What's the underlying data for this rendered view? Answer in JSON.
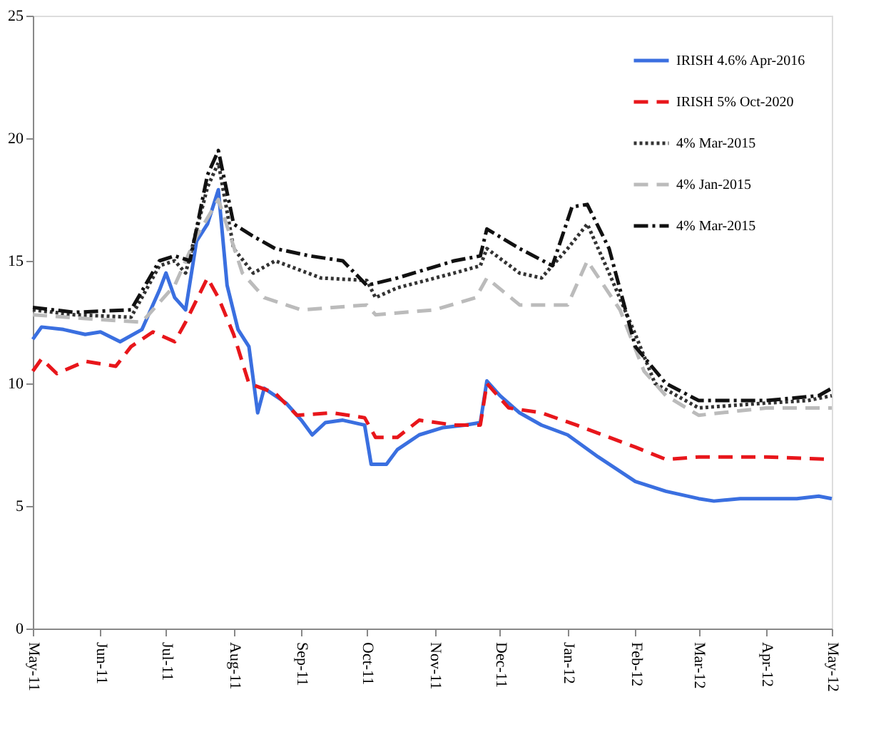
{
  "chart_data": {
    "type": "line",
    "legend": "top right",
    "grid": false,
    "xlim": [
      "2011-05-01",
      "2012-05-01"
    ],
    "xticks": [
      {
        "value": "2011-05-01",
        "label": "May-11"
      },
      {
        "value": "2011-06-01",
        "label": "Jun-11"
      },
      {
        "value": "2011-07-01",
        "label": "Jul-11"
      },
      {
        "value": "2011-08-01",
        "label": "Aug-11"
      },
      {
        "value": "2011-09-01",
        "label": "Sep-11"
      },
      {
        "value": "2011-10-01",
        "label": "Oct-11"
      },
      {
        "value": "2011-11-01",
        "label": "Nov-11"
      },
      {
        "value": "2011-12-01",
        "label": "Dec-11"
      },
      {
        "value": "2012-01-01",
        "label": "Jan-12"
      },
      {
        "value": "2012-02-01",
        "label": "Feb-12"
      },
      {
        "value": "2012-03-01",
        "label": "Mar-12"
      },
      {
        "value": "2012-04-01",
        "label": "Apr-12"
      },
      {
        "value": "2012-05-01",
        "label": "May-12"
      }
    ],
    "ylim": [
      0,
      25
    ],
    "yticks": [
      0,
      5,
      10,
      15,
      20,
      25
    ],
    "series": [
      {
        "name": "IRISH 4.6% Apr-2016",
        "color": "#3a6fe0",
        "line_style": "solid",
        "x": [
          "2011-05-01",
          "2011-05-05",
          "2011-05-15",
          "2011-05-25",
          "2011-06-01",
          "2011-06-10",
          "2011-06-20",
          "2011-06-28",
          "2011-07-01",
          "2011-07-05",
          "2011-07-10",
          "2011-07-15",
          "2011-07-20",
          "2011-07-25",
          "2011-07-29",
          "2011-08-03",
          "2011-08-08",
          "2011-08-12",
          "2011-08-15",
          "2011-08-25",
          "2011-09-01",
          "2011-09-06",
          "2011-09-12",
          "2011-09-20",
          "2011-09-30",
          "2011-10-03",
          "2011-10-10",
          "2011-10-15",
          "2011-10-25",
          "2011-11-05",
          "2011-11-15",
          "2011-11-22",
          "2011-11-25",
          "2011-12-01",
          "2011-12-10",
          "2011-12-20",
          "2012-01-01",
          "2012-01-15",
          "2012-02-01",
          "2012-02-15",
          "2012-03-01",
          "2012-03-08",
          "2012-03-20",
          "2012-04-01",
          "2012-04-15",
          "2012-04-25",
          "2012-05-01"
        ],
        "values": [
          11.8,
          12.3,
          12.2,
          12.0,
          12.1,
          11.7,
          12.2,
          13.8,
          14.5,
          13.5,
          13.0,
          15.8,
          16.5,
          17.9,
          14.0,
          12.2,
          11.5,
          8.8,
          9.8,
          9.2,
          8.5,
          7.9,
          8.4,
          8.5,
          8.3,
          6.7,
          6.7,
          7.3,
          7.9,
          8.2,
          8.3,
          8.4,
          10.1,
          9.5,
          8.8,
          8.3,
          7.9,
          7.0,
          6.0,
          5.6,
          5.3,
          5.2,
          5.3,
          5.3,
          5.3,
          5.4,
          5.3
        ]
      },
      {
        "name": "IRISH 5% Oct-2020",
        "color": "#e8161b",
        "line_style": "dashed",
        "x": [
          "2011-05-01",
          "2011-05-05",
          "2011-05-12",
          "2011-05-25",
          "2011-06-08",
          "2011-06-15",
          "2011-06-25",
          "2011-07-05",
          "2011-07-10",
          "2011-07-20",
          "2011-07-25",
          "2011-08-01",
          "2011-08-08",
          "2011-08-20",
          "2011-08-30",
          "2011-09-15",
          "2011-09-30",
          "2011-10-05",
          "2011-10-15",
          "2011-10-25",
          "2011-11-10",
          "2011-11-22",
          "2011-11-25",
          "2011-12-05",
          "2011-12-20",
          "2012-01-05",
          "2012-01-20",
          "2012-02-01",
          "2012-02-15",
          "2012-03-01",
          "2012-04-01",
          "2012-05-01"
        ],
        "values": [
          10.5,
          11.0,
          10.4,
          10.9,
          10.7,
          11.5,
          12.1,
          11.7,
          12.5,
          14.3,
          13.5,
          12.0,
          10.0,
          9.6,
          8.7,
          8.8,
          8.6,
          7.8,
          7.8,
          8.5,
          8.3,
          8.3,
          10.0,
          9.0,
          8.8,
          8.3,
          7.8,
          7.4,
          6.9,
          7.0,
          7.0,
          6.9
        ]
      },
      {
        "name": "4% Mar-2015",
        "color": "#333333",
        "line_style": "dotted",
        "x": [
          "2011-05-01",
          "2011-05-20",
          "2011-06-15",
          "2011-06-28",
          "2011-07-05",
          "2011-07-10",
          "2011-07-20",
          "2011-07-25",
          "2011-08-01",
          "2011-08-10",
          "2011-08-20",
          "2011-09-10",
          "2011-10-01",
          "2011-10-05",
          "2011-10-15",
          "2011-11-10",
          "2011-11-22",
          "2011-11-25",
          "2011-12-10",
          "2011-12-20",
          "2012-01-01",
          "2012-01-10",
          "2012-01-20",
          "2012-02-01",
          "2012-02-10",
          "2012-02-20",
          "2012-03-01",
          "2012-04-01",
          "2012-04-20",
          "2012-05-01"
        ],
        "values": [
          13.0,
          12.8,
          12.7,
          14.8,
          15.0,
          14.5,
          18.0,
          19.0,
          15.5,
          14.5,
          15.0,
          14.3,
          14.2,
          13.5,
          13.9,
          14.5,
          14.8,
          15.5,
          14.5,
          14.3,
          15.5,
          16.5,
          14.5,
          12.0,
          10.0,
          9.5,
          9.0,
          9.2,
          9.3,
          9.5
        ]
      },
      {
        "name": "4% Jan-2015",
        "color": "#bbbbbb",
        "line_style": "dashed",
        "x": [
          "2011-05-01",
          "2011-06-01",
          "2011-06-20",
          "2011-07-05",
          "2011-07-15",
          "2011-07-25",
          "2011-08-05",
          "2011-08-15",
          "2011-09-01",
          "2011-10-01",
          "2011-10-05",
          "2011-11-01",
          "2011-11-20",
          "2011-11-25",
          "2011-12-10",
          "2012-01-01",
          "2012-01-10",
          "2012-01-25",
          "2012-02-05",
          "2012-02-15",
          "2012-03-01",
          "2012-04-01",
          "2012-05-01"
        ],
        "values": [
          12.8,
          12.6,
          12.5,
          14.0,
          16.0,
          17.5,
          14.5,
          13.5,
          13.0,
          13.2,
          12.8,
          13.0,
          13.5,
          14.3,
          13.2,
          13.2,
          15.0,
          13.0,
          10.5,
          9.5,
          8.7,
          9.0,
          9.0
        ]
      },
      {
        "name": "4% Mar-2015",
        "color": "#111111",
        "line_style": "dashdot",
        "x": [
          "2011-05-01",
          "2011-05-20",
          "2011-06-15",
          "2011-06-28",
          "2011-07-05",
          "2011-07-12",
          "2011-07-20",
          "2011-07-25",
          "2011-08-01",
          "2011-08-10",
          "2011-08-20",
          "2011-09-05",
          "2011-09-20",
          "2011-10-01",
          "2011-10-15",
          "2011-11-10",
          "2011-11-22",
          "2011-11-25",
          "2011-12-10",
          "2011-12-25",
          "2012-01-03",
          "2012-01-10",
          "2012-01-20",
          "2012-02-01",
          "2012-02-15",
          "2012-03-01",
          "2012-04-01",
          "2012-04-25",
          "2012-05-01"
        ],
        "values": [
          13.1,
          12.9,
          13.0,
          15.0,
          15.2,
          15.0,
          18.5,
          19.5,
          16.5,
          16.0,
          15.5,
          15.2,
          15.0,
          14.0,
          14.3,
          15.0,
          15.2,
          16.3,
          15.5,
          14.8,
          17.2,
          17.3,
          15.5,
          11.5,
          10.0,
          9.3,
          9.3,
          9.5,
          9.8
        ]
      }
    ]
  }
}
